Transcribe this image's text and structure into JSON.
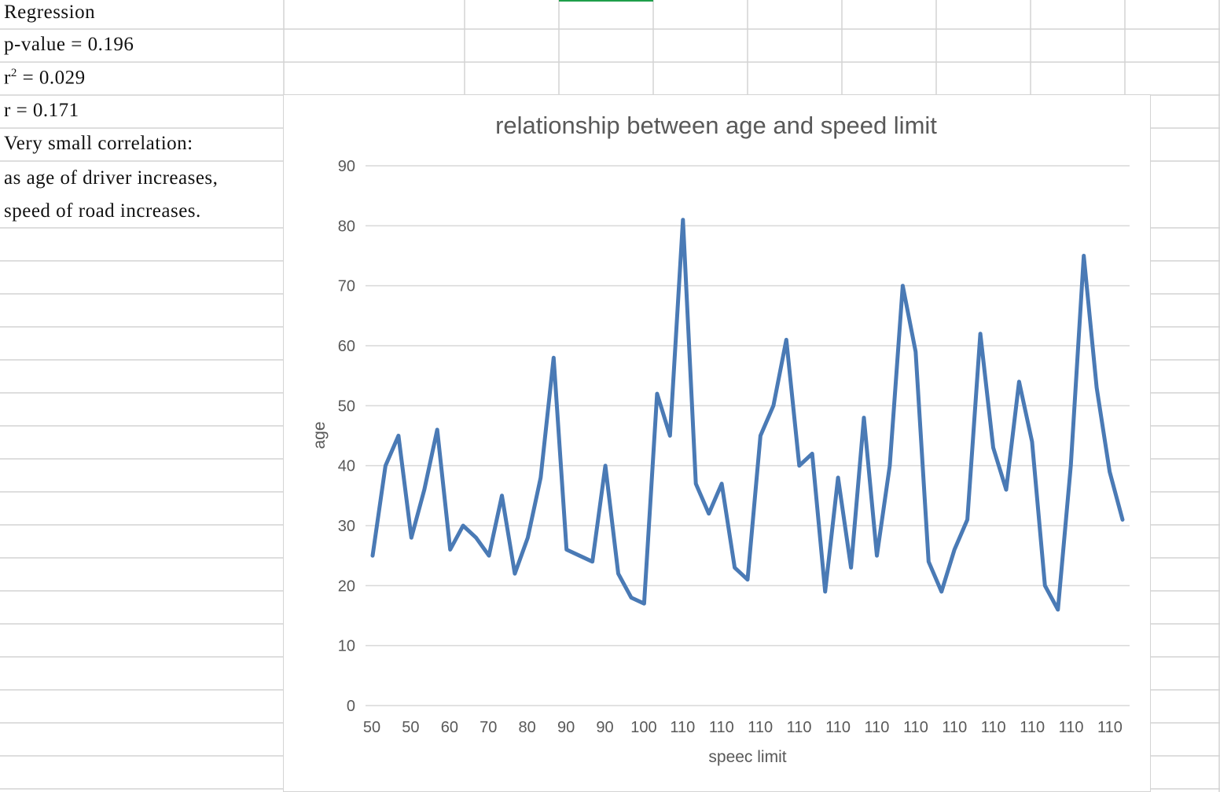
{
  "cells": {
    "a1": "Regression",
    "a2": "p-value = 0.196",
    "a3_base": "r",
    "a3_sup": "2",
    "a3_rest": " = 0.029",
    "a4": "r = 0.171",
    "a5": "Very small correlation:",
    "a6": "as age of driver increases,",
    "a7": "speed of road increases."
  },
  "colors": {
    "series": "#4a7ab5",
    "gridline": "#d9d9d9",
    "cell_border": "#d4d4d4",
    "axis_text": "#595959",
    "selection_accent": "#1e9e4a"
  },
  "chart_data": {
    "type": "line",
    "title": "relationship between age and speed limit",
    "xlabel": "speec limit",
    "ylabel": "age",
    "ylim": [
      0,
      90
    ],
    "yticks": [
      0,
      10,
      20,
      30,
      40,
      50,
      60,
      70,
      80,
      90
    ],
    "x_tick_labels": [
      "50",
      "50",
      "60",
      "70",
      "80",
      "90",
      "90",
      "100",
      "110",
      "110",
      "110",
      "110",
      "110",
      "110",
      "110",
      "110",
      "110",
      "110",
      "110",
      "110"
    ],
    "series": [
      {
        "values": [
          25,
          40,
          45,
          28,
          36,
          46,
          26,
          30,
          28,
          25,
          35,
          22,
          28,
          38,
          58,
          26,
          25,
          24,
          40,
          22,
          18,
          17,
          52,
          45,
          81,
          37,
          32,
          37,
          23,
          21,
          45,
          50,
          61,
          40,
          42,
          19,
          38,
          23,
          48,
          25,
          40,
          70,
          59,
          24,
          19,
          26,
          31,
          62,
          43,
          36,
          54,
          44,
          20,
          16,
          40,
          75,
          53,
          39,
          31
        ]
      }
    ],
    "grid": true,
    "legend": "none"
  }
}
